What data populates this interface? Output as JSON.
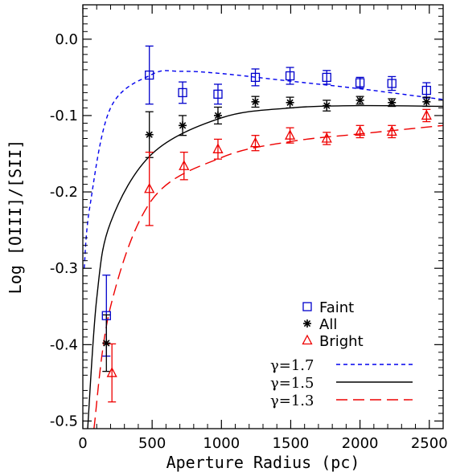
{
  "chart_data": {
    "type": "scatter",
    "xlabel": "Aperture Radius (pc)",
    "ylabel": "Log [OIII]/[SII]",
    "xlim": [
      0,
      2600
    ],
    "ylim": [
      -0.51,
      0.045
    ],
    "x_ticks": [
      0,
      500,
      1000,
      1500,
      2000,
      2500
    ],
    "y_ticks": [
      0.0,
      -0.1,
      -0.2,
      -0.3,
      -0.4,
      -0.5
    ],
    "x_tick_labels": [
      "0",
      "500",
      "1000",
      "1500",
      "2000",
      "2500"
    ],
    "y_tick_labels": [
      "0.0",
      "-0.1",
      "-0.2",
      "-0.3",
      "-0.4",
      "-0.5"
    ],
    "grid": false,
    "series": [
      {
        "name": "Faint",
        "marker": "square",
        "color": "#0000cc",
        "x": [
          170,
          480,
          720,
          975,
          1245,
          1495,
          1760,
          2000,
          2230,
          2480
        ],
        "y": [
          -0.362,
          -0.047,
          -0.07,
          -0.072,
          -0.05,
          -0.048,
          -0.05,
          -0.057,
          -0.058,
          -0.067
        ],
        "err": [
          0.053,
          0.038,
          0.014,
          0.013,
          0.011,
          0.011,
          0.009,
          0.007,
          0.009,
          0.01
        ]
      },
      {
        "name": "All",
        "marker": "asterisk",
        "color": "#000000",
        "x": [
          170,
          480,
          720,
          975,
          1245,
          1495,
          1760,
          2000,
          2230,
          2480
        ],
        "y": [
          -0.398,
          -0.125,
          -0.113,
          -0.1,
          -0.082,
          -0.083,
          -0.087,
          -0.08,
          -0.083,
          -0.082
        ],
        "err": [
          0.037,
          0.03,
          0.013,
          0.011,
          0.007,
          0.007,
          0.007,
          0.005,
          0.005,
          0.006
        ]
      },
      {
        "name": "Bright",
        "marker": "triangle",
        "color": "#ee0000",
        "x": [
          210,
          480,
          730,
          975,
          1245,
          1495,
          1760,
          2000,
          2230,
          2480
        ],
        "y": [
          -0.437,
          -0.196,
          -0.166,
          -0.144,
          -0.136,
          -0.126,
          -0.13,
          -0.121,
          -0.121,
          -0.1
        ],
        "err": [
          0.038,
          0.048,
          0.018,
          0.013,
          0.01,
          0.01,
          0.008,
          0.008,
          0.008,
          0.008
        ]
      }
    ],
    "curves": [
      {
        "name": "γ=1.7",
        "color": "#0000ee",
        "dash": "short",
        "key_points": [
          [
            10,
            -0.3
          ],
          [
            50,
            -0.22
          ],
          [
            200,
            -0.09
          ],
          [
            500,
            -0.046
          ],
          [
            700,
            -0.042
          ],
          [
            1000,
            -0.045
          ],
          [
            1500,
            -0.055
          ],
          [
            2000,
            -0.065
          ],
          [
            2600,
            -0.079
          ]
        ]
      },
      {
        "name": "γ=1.5",
        "color": "#000000",
        "dash": "solid",
        "key_points": [
          [
            35,
            -0.51
          ],
          [
            100,
            -0.34
          ],
          [
            200,
            -0.24
          ],
          [
            500,
            -0.15
          ],
          [
            1000,
            -0.103
          ],
          [
            1500,
            -0.09
          ],
          [
            2000,
            -0.087
          ],
          [
            2600,
            -0.088
          ]
        ]
      },
      {
        "name": "γ=1.3",
        "color": "#ee0000",
        "dash": "long",
        "key_points": [
          [
            80,
            -0.51
          ],
          [
            200,
            -0.35
          ],
          [
            500,
            -0.21
          ],
          [
            1000,
            -0.155
          ],
          [
            1500,
            -0.134
          ],
          [
            2000,
            -0.124
          ],
          [
            2600,
            -0.113
          ]
        ]
      }
    ],
    "legend": {
      "position": "bottom-right",
      "markers": [
        {
          "label": "Faint",
          "marker": "square",
          "color": "#0000cc"
        },
        {
          "label": "All",
          "marker": "asterisk",
          "color": "#000000"
        },
        {
          "label": "Bright",
          "marker": "triangle",
          "color": "#ee0000"
        }
      ],
      "lines": [
        {
          "label": "γ=1.7",
          "color": "#0000ee",
          "dash": "short"
        },
        {
          "label": "γ=1.5",
          "color": "#000000",
          "dash": "solid"
        },
        {
          "label": "γ=1.3",
          "color": "#ee0000",
          "dash": "long"
        }
      ]
    }
  }
}
